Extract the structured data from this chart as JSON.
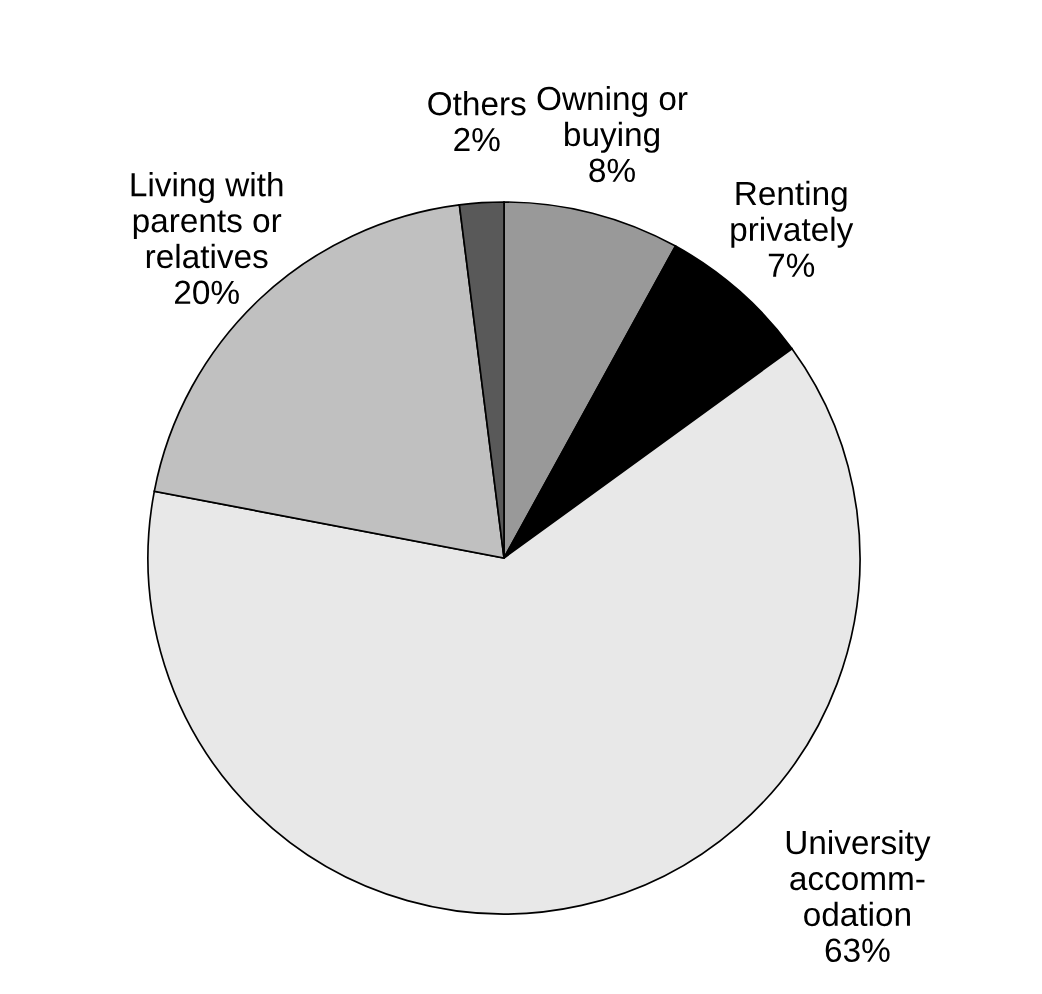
{
  "chart_data": {
    "type": "pie",
    "categories": [
      "Owning or\nbuying",
      "Renting\nprivately",
      "University\naccomm-\nodation",
      "Living with\nparents or\nrelatives",
      "Others"
    ],
    "values": [
      8,
      7,
      63,
      20,
      2
    ],
    "value_labels": [
      "8%",
      "7%",
      "63%",
      "20%",
      "2%"
    ],
    "colors": [
      "#999999",
      "#000000",
      "#e8e8e8",
      "#c0c0c0",
      "#595959"
    ]
  }
}
